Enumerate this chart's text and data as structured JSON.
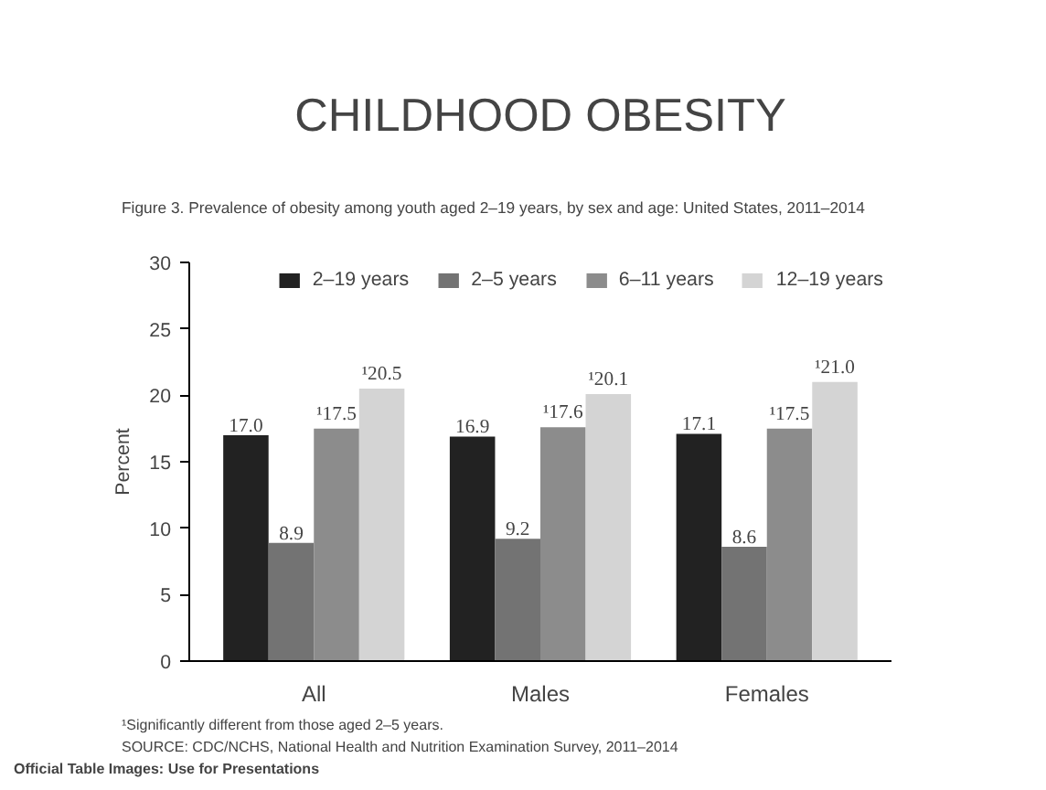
{
  "chart_data": {
    "type": "bar",
    "title": "CHILDHOOD OBESITY",
    "subtitle": "Figure 3. Prevalence of obesity among youth aged 2–19 years, by sex and age: United States, 2011–2014",
    "ylabel": "Percent",
    "categories": [
      "All",
      "Males",
      "Females"
    ],
    "series": [
      {
        "name": "2–19 years",
        "color": "#222222",
        "values": [
          17.0,
          16.9,
          17.1
        ],
        "value_labels": [
          "17.0",
          "16.9",
          "17.1"
        ]
      },
      {
        "name": "2–5 years",
        "color": "#737373",
        "values": [
          8.9,
          9.2,
          8.6
        ],
        "value_labels": [
          "8.9",
          "9.2",
          "8.6"
        ]
      },
      {
        "name": "6–11 years",
        "color": "#8c8c8c",
        "values": [
          17.5,
          17.6,
          17.5
        ],
        "value_labels": [
          "¹17.5",
          "¹17.6",
          "¹17.5"
        ]
      },
      {
        "name": "12–19 years",
        "color": "#d4d4d4",
        "values": [
          20.5,
          20.1,
          21.0
        ],
        "value_labels": [
          "¹20.5",
          "¹20.1",
          "¹21.0"
        ]
      }
    ],
    "ylim": [
      0,
      30
    ],
    "yticks": [
      0,
      5,
      10,
      15,
      20,
      25,
      30
    ],
    "grid": false,
    "legend": "top right",
    "annotations": [
      "¹Significantly different from those aged 2–5 years.",
      "SOURCE: CDC/NCHS, National Health and Nutrition Examination Survey, 2011–2014",
      "Official Table Images: Use for Presentations"
    ]
  }
}
